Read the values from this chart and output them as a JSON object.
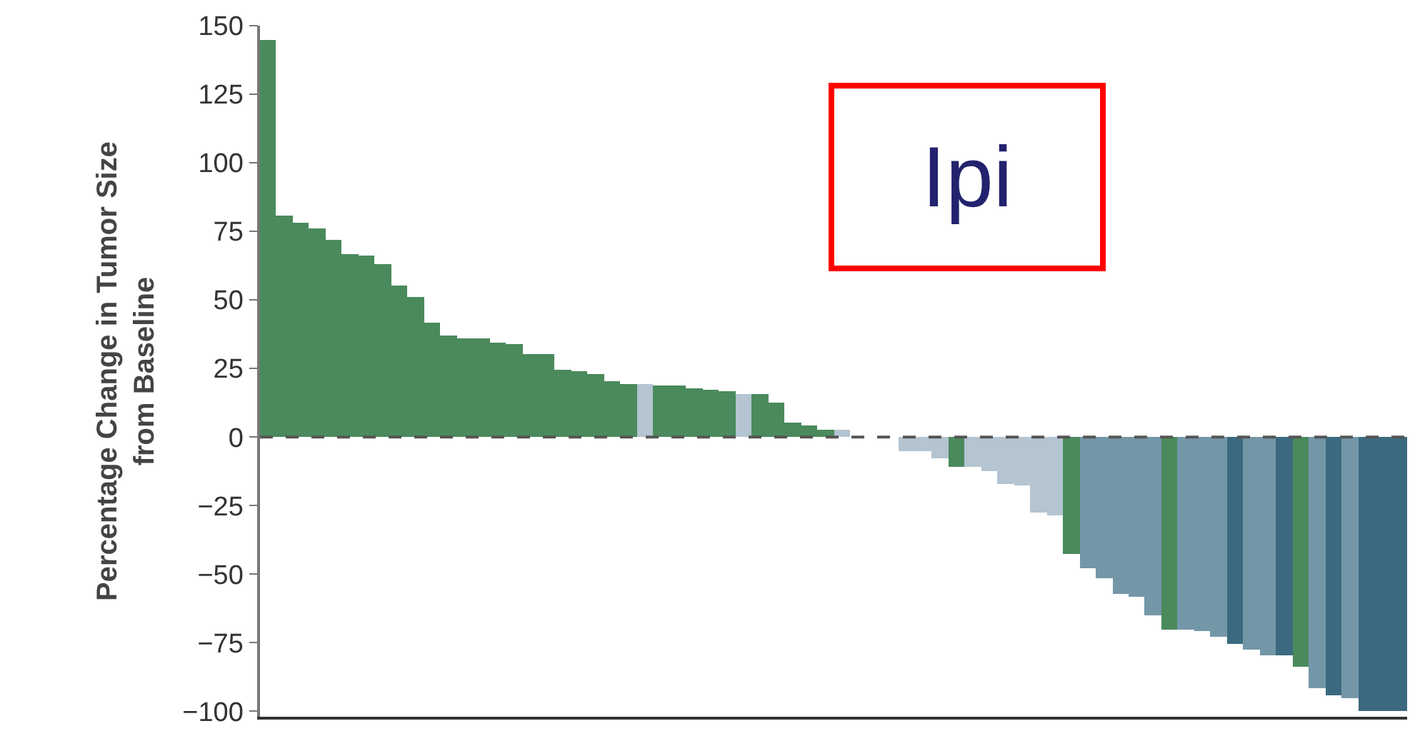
{
  "chart_data": {
    "type": "bar",
    "ylabel": "Percentage Change in Tumor Size\nfrom Baseline",
    "annotations": [
      "Ipi"
    ],
    "categories": [
      null,
      null,
      null,
      null,
      null,
      null,
      null,
      null,
      null,
      null,
      null,
      null,
      null,
      null,
      null,
      null,
      null,
      null,
      null,
      null,
      null,
      null,
      null,
      null,
      null,
      null,
      null,
      null,
      null,
      null,
      null,
      null,
      null,
      null,
      null,
      null,
      null,
      null,
      null,
      null,
      null,
      null,
      null,
      null,
      null,
      null,
      null,
      null,
      null,
      null,
      null,
      null,
      null,
      null,
      null,
      null,
      null,
      null,
      null,
      null,
      null,
      null,
      null,
      null,
      null,
      null,
      null,
      null,
      null,
      null
    ],
    "values": [
      145,
      81,
      78,
      76,
      72,
      66.5,
      66,
      63,
      55,
      51,
      41.5,
      37,
      36,
      36,
      34.5,
      34,
      30,
      30,
      24.5,
      24,
      23,
      20.5,
      19.5,
      19.5,
      19,
      19,
      18,
      17,
      16.5,
      15.5,
      15.5,
      12.5,
      5.5,
      4,
      2.5,
      2.5,
      0,
      0,
      0,
      -5,
      -5,
      -7.5,
      -11,
      -11,
      -12.5,
      -17,
      -17.5,
      -27.5,
      -28.5,
      -42.5,
      -48,
      -51.5,
      -57,
      -58.5,
      -65,
      -70,
      -70,
      -71,
      -73,
      -75.5,
      -77.5,
      -79.5,
      -79.5,
      -84,
      -91.5,
      -94,
      -95,
      -100,
      -100,
      -100
    ],
    "colors": [
      "#4a8a5c",
      "#4a8a5c",
      "#4a8a5c",
      "#4a8a5c",
      "#4a8a5c",
      "#4a8a5c",
      "#4a8a5c",
      "#4a8a5c",
      "#4a8a5c",
      "#4a8a5c",
      "#4a8a5c",
      "#4a8a5c",
      "#4a8a5c",
      "#4a8a5c",
      "#4a8a5c",
      "#4a8a5c",
      "#4a8a5c",
      "#4a8a5c",
      "#4a8a5c",
      "#4a8a5c",
      "#4a8a5c",
      "#4a8a5c",
      "#4a8a5c",
      "#b4c4d0",
      "#4a8a5c",
      "#4a8a5c",
      "#4a8a5c",
      "#4a8a5c",
      "#4a8a5c",
      "#b4c4d0",
      "#4a8a5c",
      "#4a8a5c",
      "#4a8a5c",
      "#4a8a5c",
      "#4a8a5c",
      "#b4c4d0",
      "#b4c4d0",
      "#b4c4d0",
      "#b4c4d0",
      "#b4c4d0",
      "#b4c4d0",
      "#b4c4d0",
      "#4a8a5c",
      "#b4c4d0",
      "#b4c4d0",
      "#b4c4d0",
      "#b4c4d0",
      "#b4c4d0",
      "#b4c4d0",
      "#4a8a5c",
      "#7497a8",
      "#7497a8",
      "#7497a8",
      "#7497a8",
      "#7497a8",
      "#4a8a5c",
      "#7497a8",
      "#7497a8",
      "#7497a8",
      "#3b6a80",
      "#7497a8",
      "#7497a8",
      "#3b6a80",
      "#4a8a5c",
      "#7497a8",
      "#3b6a80",
      "#7497a8",
      "#3b6a80",
      "#3b6a80",
      "#3b6a80"
    ],
    "ylim": [
      -102,
      150
    ],
    "yticks": [
      -100,
      -75,
      -50,
      -25,
      0,
      25,
      50,
      75,
      100,
      125,
      150
    ],
    "ref_lines": [
      {
        "axis": "y",
        "value": 0,
        "color": "#555555",
        "line_style": "dashed"
      }
    ]
  }
}
